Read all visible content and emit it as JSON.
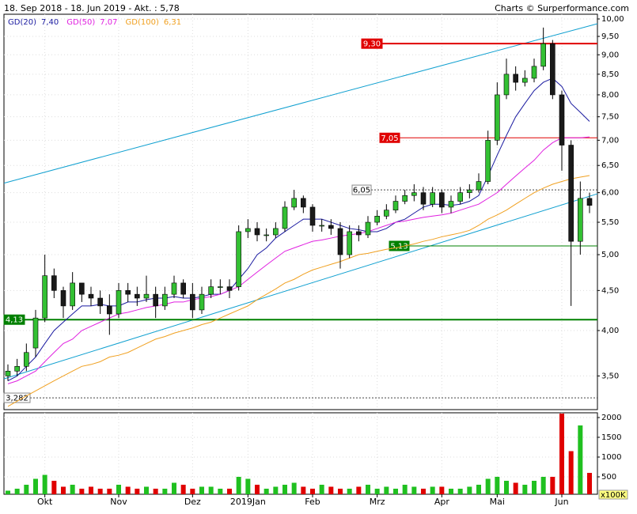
{
  "chart_data": {
    "type": "candlestick",
    "title": "18. Sep 2018 - 18. Jun 2019 - Akt. : 5,78",
    "source": "Charts © Surperformance.com",
    "log_scale": true,
    "grid": true,
    "up_color": "#33c033",
    "down_color": "#1a1a1a",
    "categories": [
      null,
      null,
      null,
      null,
      "Okt",
      null,
      null,
      null,
      null,
      null,
      null,
      null,
      "Nov",
      null,
      null,
      null,
      null,
      null,
      null,
      null,
      "Dez",
      null,
      null,
      null,
      null,
      null,
      "2019Jan",
      null,
      null,
      null,
      null,
      null,
      null,
      "Feb",
      null,
      null,
      null,
      null,
      null,
      null,
      "Mrz",
      null,
      null,
      null,
      null,
      null,
      null,
      "Apr",
      null,
      null,
      null,
      null,
      null,
      "Mai",
      null,
      null,
      null,
      null,
      null,
      null,
      "Jun",
      null,
      null,
      null
    ],
    "open": [
      3.5,
      3.55,
      3.6,
      3.8,
      4.15,
      4.7,
      4.5,
      4.3,
      4.6,
      4.45,
      4.4,
      4.3,
      4.2,
      4.5,
      4.45,
      4.4,
      4.45,
      4.3,
      4.45,
      4.6,
      4.45,
      4.25,
      4.45,
      4.55,
      4.55,
      4.55,
      5.35,
      5.4,
      5.3,
      5.3,
      5.4,
      5.75,
      5.9,
      5.75,
      5.45,
      5.45,
      5.4,
      5.0,
      5.35,
      5.3,
      5.5,
      5.6,
      5.7,
      5.85,
      5.95,
      6.0,
      5.8,
      6.0,
      5.75,
      5.85,
      6.0,
      6.05,
      6.2,
      7.0,
      8.0,
      8.5,
      8.3,
      8.4,
      8.7,
      9.3,
      8.0,
      6.9,
      5.2,
      5.9
    ],
    "high": [
      3.62,
      3.68,
      3.85,
      4.25,
      5.0,
      4.8,
      4.55,
      4.75,
      4.6,
      4.55,
      4.5,
      4.45,
      4.6,
      4.6,
      4.55,
      4.7,
      4.55,
      4.55,
      4.7,
      4.65,
      4.6,
      4.55,
      4.65,
      4.65,
      4.65,
      5.45,
      5.55,
      5.5,
      5.4,
      5.5,
      5.85,
      6.05,
      5.95,
      5.8,
      5.55,
      5.55,
      5.5,
      5.45,
      5.45,
      5.6,
      5.7,
      5.8,
      5.95,
      6.05,
      6.15,
      6.1,
      6.1,
      6.05,
      5.95,
      6.1,
      6.15,
      6.35,
      7.2,
      8.3,
      8.9,
      8.7,
      8.6,
      8.9,
      9.75,
      9.4,
      8.1,
      7.0,
      6.2,
      6.0
    ],
    "low": [
      3.45,
      3.5,
      3.55,
      3.7,
      4.1,
      4.4,
      4.15,
      4.25,
      4.35,
      4.3,
      4.2,
      3.95,
      4.15,
      4.35,
      4.3,
      4.35,
      4.15,
      4.25,
      4.4,
      4.4,
      4.15,
      4.2,
      4.4,
      4.45,
      4.4,
      4.5,
      5.25,
      5.2,
      5.2,
      5.25,
      5.35,
      5.7,
      5.65,
      5.35,
      5.35,
      5.3,
      4.8,
      4.95,
      5.2,
      5.25,
      5.45,
      5.55,
      5.65,
      5.8,
      5.85,
      5.7,
      5.75,
      5.65,
      5.65,
      5.8,
      5.9,
      6.0,
      6.15,
      6.9,
      7.9,
      8.1,
      8.2,
      8.3,
      8.6,
      7.9,
      6.4,
      4.3,
      5.0,
      5.65
    ],
    "close": [
      3.55,
      3.6,
      3.75,
      4.15,
      4.7,
      4.5,
      4.3,
      4.6,
      4.45,
      4.4,
      4.3,
      4.2,
      4.5,
      4.45,
      4.4,
      4.45,
      4.3,
      4.45,
      4.6,
      4.45,
      4.25,
      4.45,
      4.55,
      4.55,
      4.5,
      5.35,
      5.4,
      5.3,
      5.3,
      5.4,
      5.75,
      5.9,
      5.75,
      5.45,
      5.45,
      5.4,
      5.0,
      5.35,
      5.3,
      5.5,
      5.6,
      5.7,
      5.85,
      5.95,
      6.0,
      5.8,
      6.0,
      5.75,
      5.85,
      6.0,
      6.05,
      6.2,
      7.0,
      8.0,
      8.5,
      8.3,
      8.4,
      8.7,
      9.3,
      8.0,
      6.9,
      5.2,
      5.9,
      5.78
    ],
    "series": [
      {
        "name": "GD(20)",
        "color": "#1a1aa0",
        "last": {
          "value": 7.4,
          "label": "7,40"
        },
        "values": [
          3.45,
          3.5,
          3.6,
          3.7,
          3.85,
          4.0,
          4.1,
          4.2,
          4.3,
          4.3,
          4.32,
          4.3,
          4.3,
          4.35,
          4.35,
          4.38,
          4.4,
          4.4,
          4.42,
          4.4,
          4.4,
          4.42,
          4.45,
          4.45,
          4.5,
          4.65,
          4.8,
          5.0,
          5.1,
          5.25,
          5.35,
          5.45,
          5.55,
          5.55,
          5.55,
          5.5,
          5.45,
          5.4,
          5.38,
          5.35,
          5.35,
          5.4,
          5.5,
          5.55,
          5.65,
          5.75,
          5.8,
          5.8,
          5.78,
          5.8,
          5.85,
          5.95,
          6.3,
          6.7,
          7.1,
          7.5,
          7.8,
          8.1,
          8.3,
          8.4,
          8.2,
          7.8,
          7.6,
          7.4
        ]
      },
      {
        "name": "GD(50)",
        "color": "#e020e0",
        "last": {
          "value": 7.07,
          "label": "7,07"
        },
        "values": [
          3.42,
          3.45,
          3.5,
          3.55,
          3.65,
          3.75,
          3.85,
          3.9,
          4.0,
          4.05,
          4.1,
          4.15,
          4.2,
          4.22,
          4.25,
          4.28,
          4.3,
          4.32,
          4.35,
          4.35,
          4.38,
          4.4,
          4.42,
          4.45,
          4.5,
          4.55,
          4.65,
          4.75,
          4.85,
          4.95,
          5.05,
          5.1,
          5.15,
          5.2,
          5.22,
          5.25,
          5.28,
          5.3,
          5.32,
          5.35,
          5.4,
          5.45,
          5.5,
          5.52,
          5.55,
          5.58,
          5.6,
          5.62,
          5.65,
          5.7,
          5.75,
          5.8,
          5.9,
          6.0,
          6.15,
          6.3,
          6.45,
          6.6,
          6.8,
          6.95,
          7.05,
          7.05,
          7.05,
          7.07
        ]
      },
      {
        "name": "GD(100)",
        "color": "#f0a020",
        "last": {
          "value": 6.31,
          "label": "6,31"
        },
        "values": [
          3.2,
          3.25,
          3.3,
          3.35,
          3.4,
          3.45,
          3.5,
          3.55,
          3.6,
          3.62,
          3.65,
          3.7,
          3.72,
          3.75,
          3.8,
          3.85,
          3.9,
          3.93,
          3.97,
          4.0,
          4.03,
          4.07,
          4.1,
          4.15,
          4.2,
          4.25,
          4.3,
          4.38,
          4.45,
          4.52,
          4.6,
          4.65,
          4.72,
          4.78,
          4.82,
          4.86,
          4.9,
          4.95,
          5.0,
          5.02,
          5.05,
          5.08,
          5.1,
          5.13,
          5.16,
          5.2,
          5.23,
          5.27,
          5.3,
          5.33,
          5.37,
          5.45,
          5.55,
          5.62,
          5.7,
          5.8,
          5.9,
          6.0,
          6.08,
          6.15,
          6.2,
          6.25,
          6.28,
          6.31
        ]
      }
    ],
    "ylim": [
      3.17,
      10.14
    ],
    "yticks": [
      {
        "value": 3.5,
        "label": "3,50"
      },
      {
        "value": 4,
        "label": "4,00"
      },
      {
        "value": 4.5,
        "label": "4,50"
      },
      {
        "value": 5,
        "label": "5,00"
      },
      {
        "value": 5.5,
        "label": "5,50"
      },
      {
        "value": 6,
        "label": "6,00"
      },
      {
        "value": 6.5,
        "label": "6,50"
      },
      {
        "value": 7,
        "label": "7,00"
      },
      {
        "value": 7.5,
        "label": "7,50"
      },
      {
        "value": 8,
        "label": "8,00"
      },
      {
        "value": 8.5,
        "label": "8,50"
      },
      {
        "value": 9,
        "label": "9,00"
      },
      {
        "value": 9.5,
        "label": "9,50"
      },
      {
        "value": 10,
        "label": "10,00"
      }
    ],
    "levels": [
      {
        "value": 9.3,
        "label": "9,30",
        "color": "#e00000",
        "style": "box"
      },
      {
        "value": 7.05,
        "label": "7,05",
        "color": "#e00000",
        "style": "box"
      },
      {
        "value": 6.05,
        "label": "6,05",
        "color": "#555555",
        "style": "dashed"
      },
      {
        "value": 5.13,
        "label": "5,13",
        "color": "#008000",
        "style": "box"
      },
      {
        "value": 4.13,
        "label": "4,13",
        "color": "#008000",
        "style": "thick"
      },
      {
        "value": 3.282,
        "label": "3,282",
        "color": "#555555",
        "style": "dashed"
      }
    ],
    "trendlines": [
      {
        "color": "#10a0d0",
        "values": [
          6.17,
          9.86
        ]
      },
      {
        "color": "#10a0d0",
        "values": [
          3.47,
          5.98
        ]
      }
    ],
    "volume": {
      "unit": "x100K",
      "ylim": [
        0,
        2120
      ],
      "yticks": [
        500,
        1000,
        1500,
        2000
      ],
      "up_color": "#20c020",
      "down_color": "#e00000",
      "values": [
        150,
        200,
        300,
        450,
        550,
        400,
        250,
        300,
        200,
        250,
        200,
        200,
        300,
        250,
        200,
        250,
        200,
        200,
        350,
        300,
        200,
        250,
        250,
        200,
        200,
        500,
        450,
        300,
        200,
        250,
        300,
        350,
        250,
        200,
        300,
        250,
        200,
        200,
        250,
        300,
        200,
        250,
        200,
        300,
        250,
        200,
        250,
        250,
        200,
        200,
        250,
        300,
        450,
        500,
        400,
        350,
        300,
        400,
        500,
        500,
        2100,
        1150,
        1800,
        600
      ]
    }
  }
}
